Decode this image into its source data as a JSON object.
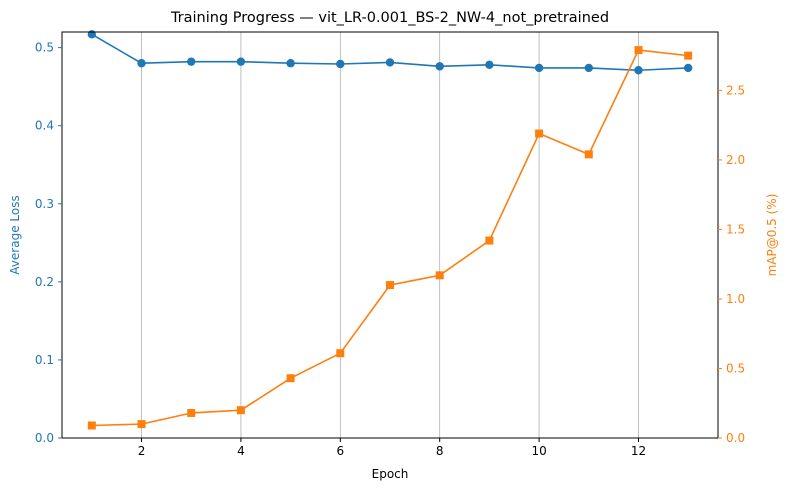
{
  "chart_data": {
    "type": "line",
    "title": "Training Progress — vit_LR-0.001_BS-2_NW-4_not_pretrained",
    "xlabel": "Epoch",
    "ylabel_left": "Average Loss",
    "ylabel_right": "mAP@0.5 (%)",
    "x": [
      1,
      2,
      3,
      4,
      5,
      6,
      7,
      8,
      9,
      10,
      11,
      12,
      13
    ],
    "xlim": [
      0.4,
      13.6
    ],
    "xticks": [
      2,
      4,
      6,
      8,
      10,
      12
    ],
    "ylim_left": [
      0,
      0.52
    ],
    "yticks_left": [
      0.0,
      0.1,
      0.2,
      0.3,
      0.4,
      0.5
    ],
    "ylim_right": [
      0,
      2.92
    ],
    "yticks_right": [
      0.0,
      0.5,
      1.0,
      1.5,
      2.0,
      2.5
    ],
    "grid": "vertical",
    "series": [
      {
        "axis": "left",
        "marker": "circle",
        "color": "#1f77b4",
        "values": [
          0.517,
          0.48,
          0.482,
          0.482,
          0.48,
          0.479,
          0.481,
          0.476,
          0.478,
          0.474,
          0.474,
          0.471,
          0.474
        ]
      },
      {
        "axis": "right",
        "marker": "square",
        "color": "#ff7f0e",
        "values": [
          0.09,
          0.1,
          0.18,
          0.2,
          0.43,
          0.61,
          1.1,
          1.17,
          1.42,
          2.19,
          2.04,
          2.79,
          2.75
        ]
      }
    ]
  }
}
